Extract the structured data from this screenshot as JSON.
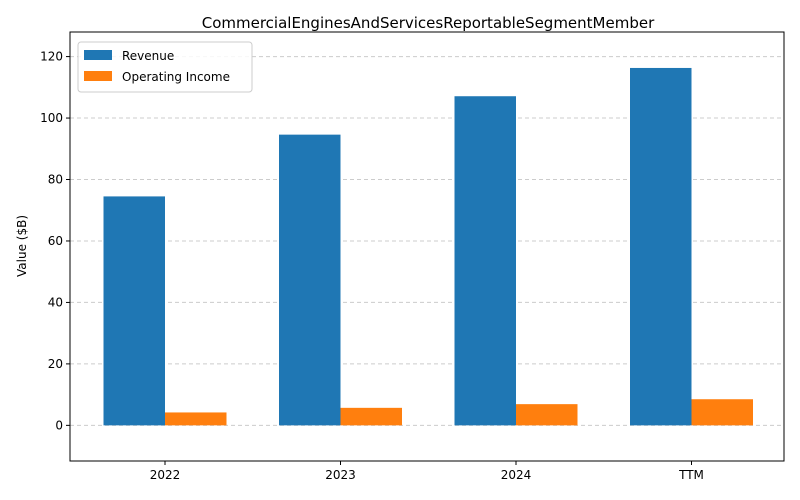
{
  "chart_data": {
    "type": "bar",
    "title": "CommercialEnginesAndServicesReportableSegmentMember",
    "xlabel": "",
    "ylabel": "Value ($B)",
    "categories": [
      "2022",
      "2023",
      "2024",
      "TTM"
    ],
    "series": [
      {
        "name": "Revenue",
        "color": "#1f77b4",
        "values": [
          74.5,
          94.6,
          107.1,
          116.3
        ]
      },
      {
        "name": "Operating Income",
        "color": "#ff7f0e",
        "values": [
          4.2,
          5.7,
          6.9,
          8.5
        ]
      }
    ],
    "ylim": [
      -11.6,
      128
    ],
    "yticks": [
      0,
      20,
      40,
      60,
      80,
      100,
      120
    ],
    "grid": "y-dashed",
    "legend_position": "top-left"
  }
}
